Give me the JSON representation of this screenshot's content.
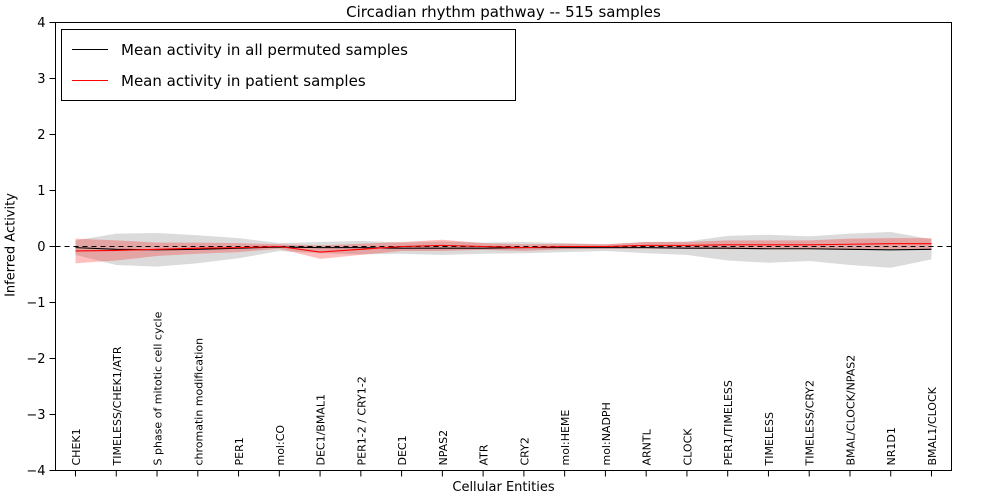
{
  "chart_data": {
    "type": "line",
    "title": "Circadian rhythm pathway -- 515 samples",
    "xlabel": "Cellular Entities",
    "ylabel": "Inferred Activity",
    "ylim": [
      -4,
      4
    ],
    "yticks": [
      -4,
      -3,
      -2,
      -1,
      0,
      1,
      2,
      3,
      4
    ],
    "grid": false,
    "legend_position": "upper left",
    "zero_line": {
      "style": "dashed",
      "color": "#000000",
      "y": 0
    },
    "categories": [
      "CHEK1",
      "TIMELESS/CHEK1/ATR",
      "S phase of mitotic cell cycle",
      "chromatin modification",
      "PER1",
      "mol:CO",
      "DEC1/BMAL1",
      "PER1-2 / CRY1-2",
      "DEC1",
      "NPAS2",
      "ATR",
      "CRY2",
      "mol:HEME",
      "mol:NADPH",
      "ARNTL",
      "CLOCK",
      "PER1/TIMELESS",
      "TIMELESS",
      "TIMELESS/CRY2",
      "BMAL/CLOCK/NPAS2",
      "NR1D1",
      "BMAL1/CLOCK"
    ],
    "series": [
      {
        "name": "Mean activity in all permuted samples",
        "color": "#000000",
        "band_color": "#999999",
        "band_opacity": 0.35,
        "values": [
          -0.02,
          -0.05,
          -0.06,
          -0.05,
          -0.03,
          -0.01,
          -0.02,
          -0.02,
          -0.03,
          -0.03,
          -0.03,
          -0.02,
          -0.02,
          -0.02,
          -0.02,
          -0.03,
          -0.03,
          -0.04,
          -0.04,
          -0.05,
          -0.06,
          -0.05
        ],
        "band_lower": [
          -0.15,
          -0.33,
          -0.36,
          -0.3,
          -0.21,
          -0.08,
          -0.12,
          -0.14,
          -0.13,
          -0.15,
          -0.13,
          -0.12,
          -0.1,
          -0.08,
          -0.12,
          -0.15,
          -0.25,
          -0.29,
          -0.26,
          -0.33,
          -0.38,
          -0.23
        ],
        "band_upper": [
          0.11,
          0.23,
          0.24,
          0.2,
          0.15,
          0.06,
          0.08,
          0.1,
          0.07,
          0.09,
          0.07,
          0.08,
          0.06,
          0.04,
          0.08,
          0.09,
          0.19,
          0.21,
          0.18,
          0.23,
          0.26,
          0.13
        ]
      },
      {
        "name": "Mean activity in patient samples",
        "color": "#ff0000",
        "band_color": "#ff0000",
        "band_opacity": 0.25,
        "values": [
          -0.08,
          -0.07,
          -0.05,
          -0.03,
          -0.02,
          0.0,
          -0.1,
          -0.05,
          0.0,
          0.02,
          0.0,
          -0.02,
          0.0,
          0.0,
          0.02,
          0.02,
          0.03,
          0.03,
          0.03,
          0.04,
          0.05,
          0.05
        ],
        "band_lower": [
          -0.3,
          -0.25,
          -0.17,
          -0.13,
          -0.1,
          -0.04,
          -0.22,
          -0.15,
          -0.08,
          -0.08,
          -0.06,
          -0.08,
          -0.05,
          -0.04,
          -0.04,
          -0.04,
          -0.05,
          -0.05,
          -0.05,
          -0.06,
          -0.05,
          -0.05
        ],
        "band_upper": [
          0.14,
          0.11,
          0.07,
          0.07,
          0.06,
          0.04,
          0.02,
          0.05,
          0.08,
          0.12,
          0.06,
          0.04,
          0.05,
          0.04,
          0.08,
          0.08,
          0.11,
          0.11,
          0.11,
          0.14,
          0.15,
          0.15
        ]
      }
    ]
  }
}
